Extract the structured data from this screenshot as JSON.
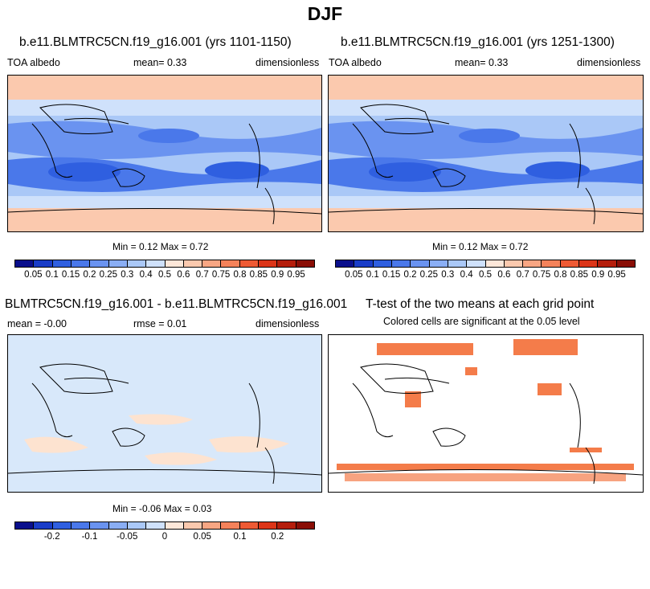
{
  "title": "DJF",
  "panel1": {
    "title": "b.e11.BLMTRC5CN.f19_g16.001 (yrs 1101-1150)",
    "left": "TOA albedo",
    "mean": "mean=   0.33",
    "units": "dimensionless",
    "minmax": "Min =   0.12 Max =   0.72"
  },
  "panel2": {
    "title": "b.e11.BLMTRC5CN.f19_g16.001 (yrs 1251-1300)",
    "left": "TOA albedo",
    "mean": "mean=   0.33",
    "units": "dimensionless",
    "minmax": "Min =   0.12 Max =   0.72"
  },
  "panel3": {
    "title": "BLMTRC5CN.f19_g16.001 - b.e11.BLMTRC5CN.f19_g16.001",
    "left": "mean =  -0.00",
    "mean": "rmse =   0.01",
    "units": "dimensionless",
    "minmax": "Min =  -0.06 Max =   0.03"
  },
  "panel4": {
    "title": "T-test of the two means at each grid point",
    "subtitle": "Colored cells are significant at the 0.05 level"
  },
  "colorbar_main": {
    "labels": [
      "0.05",
      "0.1",
      "0.15",
      "0.2",
      "0.25",
      "0.3",
      "0.4",
      "0.5",
      "0.6",
      "0.7",
      "0.75",
      "0.8",
      "0.85",
      "0.9",
      "0.95"
    ],
    "colors": [
      "#0a0f8c",
      "#1a3dc8",
      "#2f5fe0",
      "#4a78ea",
      "#6a93f0",
      "#8aaef4",
      "#aac8f7",
      "#cfe1fb",
      "#fde7d9",
      "#fbc9ae",
      "#f8a683",
      "#f4825a",
      "#ee5a34",
      "#dc3518",
      "#b51e0c",
      "#8a0e06"
    ]
  },
  "colorbar_diff": {
    "labels": [
      "-0.2",
      "-0.1",
      "-0.05",
      "0",
      "0.05",
      "0.1",
      "0.2"
    ],
    "colors": [
      "#0a0f8c",
      "#1a3dc8",
      "#2f5fe0",
      "#4a78ea",
      "#6a93f0",
      "#8aaef4",
      "#aac8f7",
      "#cfe1fb",
      "#fde7d9",
      "#fbc9ae",
      "#f8a683",
      "#f4825a",
      "#ee5a34",
      "#dc3518",
      "#b51e0c",
      "#8a0e06"
    ]
  },
  "colors": {
    "ocean_deep": "#2f5fe0",
    "ocean_mid": "#6a93f0",
    "ocean_light": "#aac8f7",
    "polar": "#fbc9ae",
    "diff_base": "#d8e8fa",
    "diff_pos": "#fde3d0",
    "sig": "#f47c4a"
  }
}
